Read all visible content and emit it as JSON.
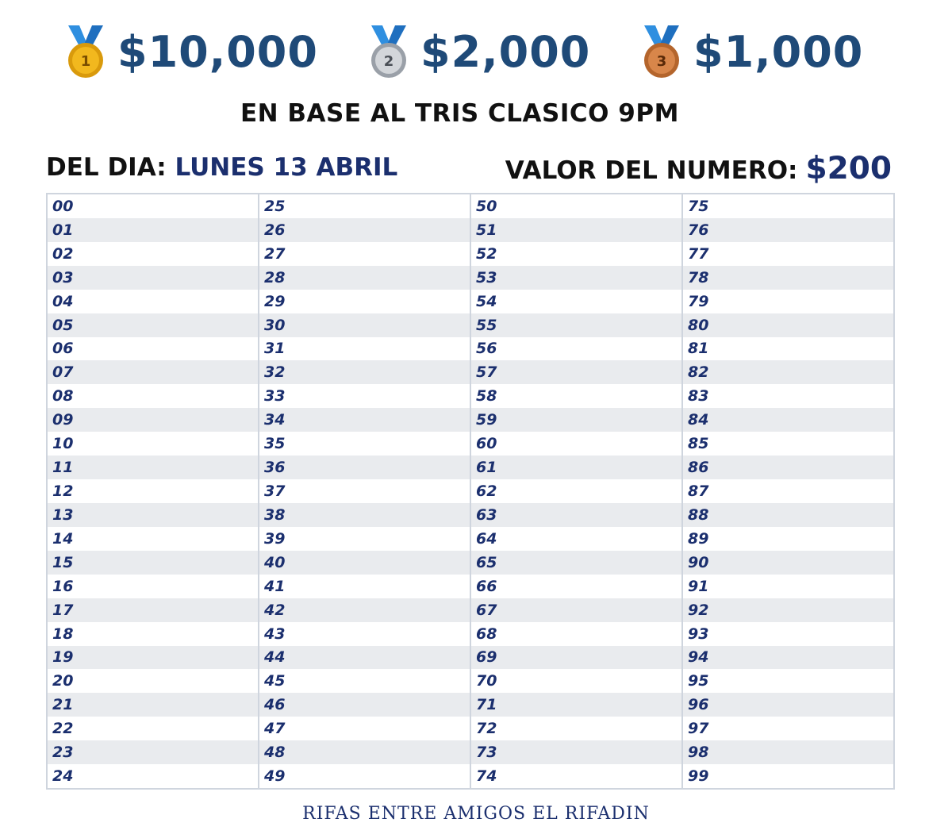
{
  "prizes": [
    {
      "rank": "1",
      "amount": "$10,000",
      "medal_color": "#f2b81e",
      "medal_dark": "#d99a0c",
      "icon": "gold-medal-icon"
    },
    {
      "rank": "2",
      "amount": "$2,000",
      "medal_color": "#c9cdd2",
      "medal_dark": "#9aa0a8",
      "icon": "silver-medal-icon"
    },
    {
      "rank": "3",
      "amount": "$1,000",
      "medal_color": "#d8864a",
      "medal_dark": "#b4652c",
      "icon": "bronze-medal-icon"
    }
  ],
  "ribbon_color": "#2f8fe0",
  "title": "EN BASE AL TRIS CLASICO 9PM",
  "day": {
    "label": "DEL DIA:",
    "value": "LUNES 13 ABRIL"
  },
  "price": {
    "label": "VALOR DEL NUMERO:",
    "value": "$200"
  },
  "numbers": {
    "columns": [
      [
        "00",
        "01",
        "02",
        "03",
        "04",
        "05",
        "06",
        "07",
        "08",
        "09",
        "10",
        "11",
        "12",
        "13",
        "14",
        "15",
        "16",
        "17",
        "18",
        "19",
        "20",
        "21",
        "22",
        "23",
        "24"
      ],
      [
        "25",
        "26",
        "27",
        "28",
        "29",
        "30",
        "31",
        "32",
        "33",
        "34",
        "35",
        "36",
        "37",
        "38",
        "39",
        "40",
        "41",
        "42",
        "43",
        "44",
        "45",
        "46",
        "47",
        "48",
        "49"
      ],
      [
        "50",
        "51",
        "52",
        "53",
        "54",
        "55",
        "56",
        "57",
        "58",
        "59",
        "60",
        "61",
        "62",
        "63",
        "64",
        "65",
        "66",
        "67",
        "68",
        "69",
        "70",
        "71",
        "72",
        "73",
        "74"
      ],
      [
        "75",
        "76",
        "77",
        "78",
        "79",
        "80",
        "81",
        "82",
        "83",
        "84",
        "85",
        "86",
        "87",
        "88",
        "89",
        "90",
        "91",
        "92",
        "93",
        "94",
        "95",
        "96",
        "97",
        "98",
        "99"
      ]
    ]
  },
  "footer": "RIFAS ENTRE AMIGOS EL RIFADIN"
}
